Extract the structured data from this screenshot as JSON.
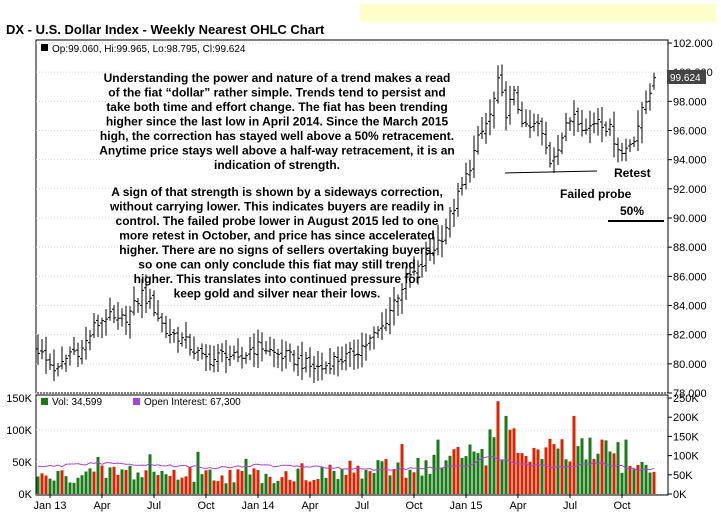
{
  "title": "DX - U.S. Dollar Index - Weekly Nearest OHLC Chart",
  "ohlc_readout": "Op:99.060, Hi:99.965, Lo:98.795, Cl:99.624",
  "last_price_label": "99.624",
  "volume_legend": "Vol: 34,599",
  "oi_legend": "Open Interest: 67,300",
  "colors": {
    "up_volume": "#1a7a1a",
    "down_volume": "#dd2200",
    "open_interest": "#aa44dd",
    "last_price_bg": "#444444"
  },
  "annotations": {
    "paragraph1": [
      "Understanding the power and nature of a trend makes a read",
      "of the fiat “dollar” rather simple.  Trends tend to persist and",
      "take both time and effort change.  The fiat has been trending",
      "higher since the last low in April 2014.  Since the March 2015",
      "high, the correction has stayed well above a 50% retracement.",
      "Anytime price stays well above a half-way retracement, it is an",
      "indication of strength."
    ],
    "paragraph2": [
      "A sign of that strength is shown by a sideways correction,",
      "without carrying lower.  This indicates buyers are readily in",
      "control.  The failed probe lower in August 2015 led to one",
      "more retest in October, and price has since accelerated",
      "higher.  There are no signs of sellers overtaking buyers,",
      "so one can only conclude this fiat may still trend",
      "higher.  This translates into continued pressure for",
      "keep gold and silver  near their lows."
    ],
    "retest": "Retest",
    "failed_probe": "Failed probe",
    "fifty_pct": "50%"
  },
  "chart_data": {
    "type": "ohlc",
    "frequency": "weekly",
    "price_axis": {
      "min": 78,
      "max": 102,
      "ticks": [
        "102.000",
        "100.000",
        "98.000",
        "96.000",
        "94.000",
        "92.000",
        "90.000",
        "88.000",
        "86.000",
        "84.000",
        "82.000",
        "80.000",
        "78.000"
      ]
    },
    "x_tick_labels": [
      "Jan 13",
      "Apr",
      "Jul",
      "Oct",
      "Jan 14",
      "Apr",
      "Jul",
      "Oct",
      "Jan 15",
      "Apr",
      "Jul",
      "Oct"
    ],
    "x_tick_weeks": [
      3,
      16,
      29,
      42,
      55,
      68,
      81,
      94,
      107,
      120,
      133,
      146
    ],
    "volume_axis_left": {
      "ticks": [
        "150K",
        "100K",
        "50K",
        "0K"
      ],
      "max": 150000
    },
    "volume_axis_right": {
      "ticks": [
        "250K",
        "200K",
        "150K",
        "100K",
        "50K",
        "0K"
      ],
      "max": 250000
    },
    "price_anchors": [
      [
        0,
        81.0
      ],
      [
        2,
        80.2
      ],
      [
        5,
        79.5
      ],
      [
        8,
        80.8
      ],
      [
        11,
        81.0
      ],
      [
        14,
        82.5
      ],
      [
        17,
        83.3
      ],
      [
        20,
        82.8
      ],
      [
        23,
        83.5
      ],
      [
        26,
        84.8
      ],
      [
        29,
        83.8
      ],
      [
        32,
        82.2
      ],
      [
        35,
        81.9
      ],
      [
        38,
        81.2
      ],
      [
        41,
        80.4
      ],
      [
        44,
        80.3
      ],
      [
        47,
        80.8
      ],
      [
        50,
        80.1
      ],
      [
        53,
        81.0
      ],
      [
        56,
        81.2
      ],
      [
        59,
        80.7
      ],
      [
        62,
        80.5
      ],
      [
        65,
        80.2
      ],
      [
        68,
        79.8
      ],
      [
        71,
        79.7
      ],
      [
        74,
        80.3
      ],
      [
        77,
        80.4
      ],
      [
        80,
        81.0
      ],
      [
        83,
        81.6
      ],
      [
        86,
        82.5
      ],
      [
        89,
        84.3
      ],
      [
        92,
        85.8
      ],
      [
        95,
        86.4
      ],
      [
        98,
        87.6
      ],
      [
        101,
        88.8
      ],
      [
        104,
        90.8
      ],
      [
        107,
        92.8
      ],
      [
        110,
        95.3
      ],
      [
        113,
        97.0
      ],
      [
        115,
        99.2
      ],
      [
        117,
        97.3
      ],
      [
        119,
        98.4
      ],
      [
        122,
        96.0
      ],
      [
        125,
        96.4
      ],
      [
        128,
        93.9
      ],
      [
        131,
        95.6
      ],
      [
        134,
        97.3
      ],
      [
        137,
        96.0
      ],
      [
        140,
        96.9
      ],
      [
        143,
        96.0
      ],
      [
        146,
        94.4
      ],
      [
        149,
        95.6
      ],
      [
        151,
        97.2
      ],
      [
        153,
        98.8
      ],
      [
        154,
        99.6
      ]
    ],
    "volume_anchors": [
      [
        0,
        25000
      ],
      [
        20,
        35000
      ],
      [
        40,
        30000
      ],
      [
        60,
        30000
      ],
      [
        80,
        33000
      ],
      [
        95,
        45000
      ],
      [
        100,
        48000
      ],
      [
        105,
        55000
      ],
      [
        110,
        70000
      ],
      [
        115,
        85000
      ],
      [
        120,
        70000
      ],
      [
        125,
        60000
      ],
      [
        130,
        62000
      ],
      [
        135,
        65000
      ],
      [
        140,
        58000
      ],
      [
        145,
        62000
      ],
      [
        150,
        45000
      ],
      [
        154,
        34599
      ]
    ],
    "volume_spikes": [
      [
        15,
        58000
      ],
      [
        28,
        62000
      ],
      [
        40,
        66000
      ],
      [
        52,
        55000
      ],
      [
        66,
        48000
      ],
      [
        78,
        52000
      ],
      [
        91,
        78000
      ],
      [
        100,
        85000
      ],
      [
        115,
        145000
      ],
      [
        117,
        122000
      ],
      [
        134,
        122000
      ],
      [
        141,
        85000
      ],
      [
        147,
        85000
      ]
    ],
    "open_interest_anchors": [
      [
        0,
        70000
      ],
      [
        15,
        80000
      ],
      [
        30,
        75000
      ],
      [
        45,
        68000
      ],
      [
        55,
        75000
      ],
      [
        70,
        70000
      ],
      [
        85,
        64000
      ],
      [
        100,
        68000
      ],
      [
        108,
        75000
      ],
      [
        113,
        100000
      ],
      [
        116,
        90000
      ],
      [
        120,
        78000
      ],
      [
        130,
        70000
      ],
      [
        140,
        80000
      ],
      [
        146,
        72000
      ],
      [
        150,
        62000
      ],
      [
        154,
        67300
      ]
    ]
  }
}
